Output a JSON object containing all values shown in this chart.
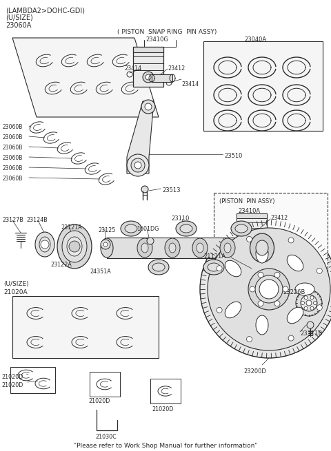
{
  "bg_color": "#ffffff",
  "line_color": "#2a2a2a",
  "title_text": "\"Please refer to Work Shop Manual for further information\"",
  "header_line1": "(LAMBDA2>DOHC-GDI)",
  "header_line2": "(U/SIZE)",
  "header_line3": "23060A",
  "piston_snap_ring_title": "( PISTON  SNAP RING  PIN ASSY)",
  "piston_snap_ring_num": "23410G",
  "piston_pin_assy_title": "(PISTON  PIN ASSY)",
  "piston_pin_assy_num": "23410A",
  "figsize": [
    4.8,
    6.55
  ],
  "dpi": 100
}
